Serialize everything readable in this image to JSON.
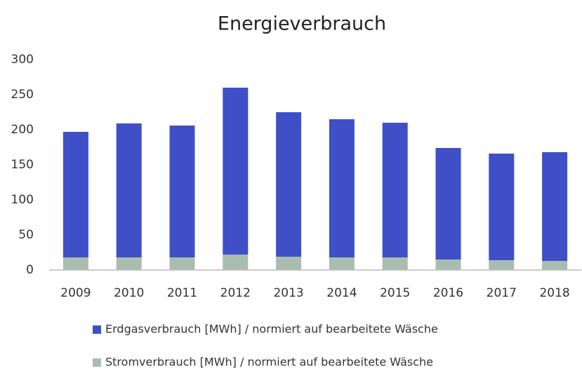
{
  "chart_data": {
    "type": "stacked_bar",
    "title": "Energieverbrauch",
    "categories": [
      "2009",
      "2010",
      "2011",
      "2012",
      "2013",
      "2014",
      "2015",
      "2016",
      "2017",
      "2018"
    ],
    "series": [
      {
        "name": "Erdgasverbrauch [MWh] / normiert auf bearbeitete Wäsche",
        "color": "#3f4fc8",
        "values": [
          179,
          191,
          188,
          238,
          206,
          197,
          192,
          159,
          152,
          155
        ]
      },
      {
        "name": "Stromverbrauch [MWh] / normiert auf bearbeitete Wäsche",
        "color": "#a8bdb0",
        "values": [
          18,
          18,
          18,
          22,
          19,
          18,
          18,
          15,
          14,
          13
        ]
      }
    ],
    "ylim": [
      0,
      300
    ],
    "yticks": [
      0,
      50,
      100,
      150,
      200,
      250,
      300
    ],
    "grid": false,
    "legend": "bottom"
  }
}
